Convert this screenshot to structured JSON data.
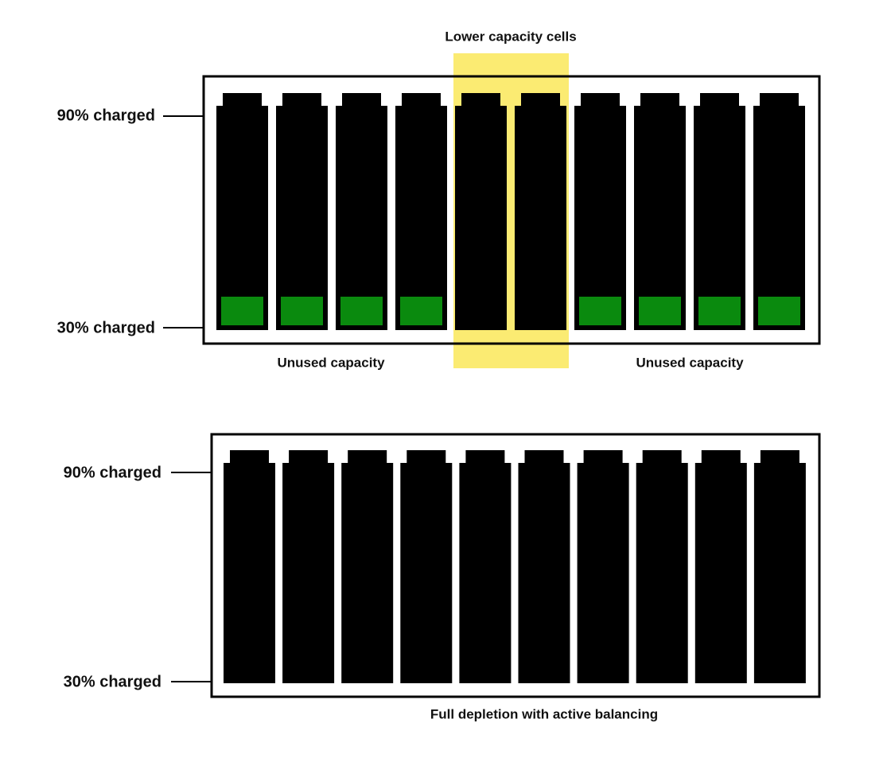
{
  "top_panel": {
    "caption": "Lower capacity cells",
    "level_high": "90% charged",
    "level_low": "30% charged",
    "note_left": "Unused capacity",
    "note_right": "Unused capacity"
  },
  "bottom_panel": {
    "level_high": "90% charged",
    "level_low": "30% charged",
    "caption": "Full depletion with active balancing"
  }
}
